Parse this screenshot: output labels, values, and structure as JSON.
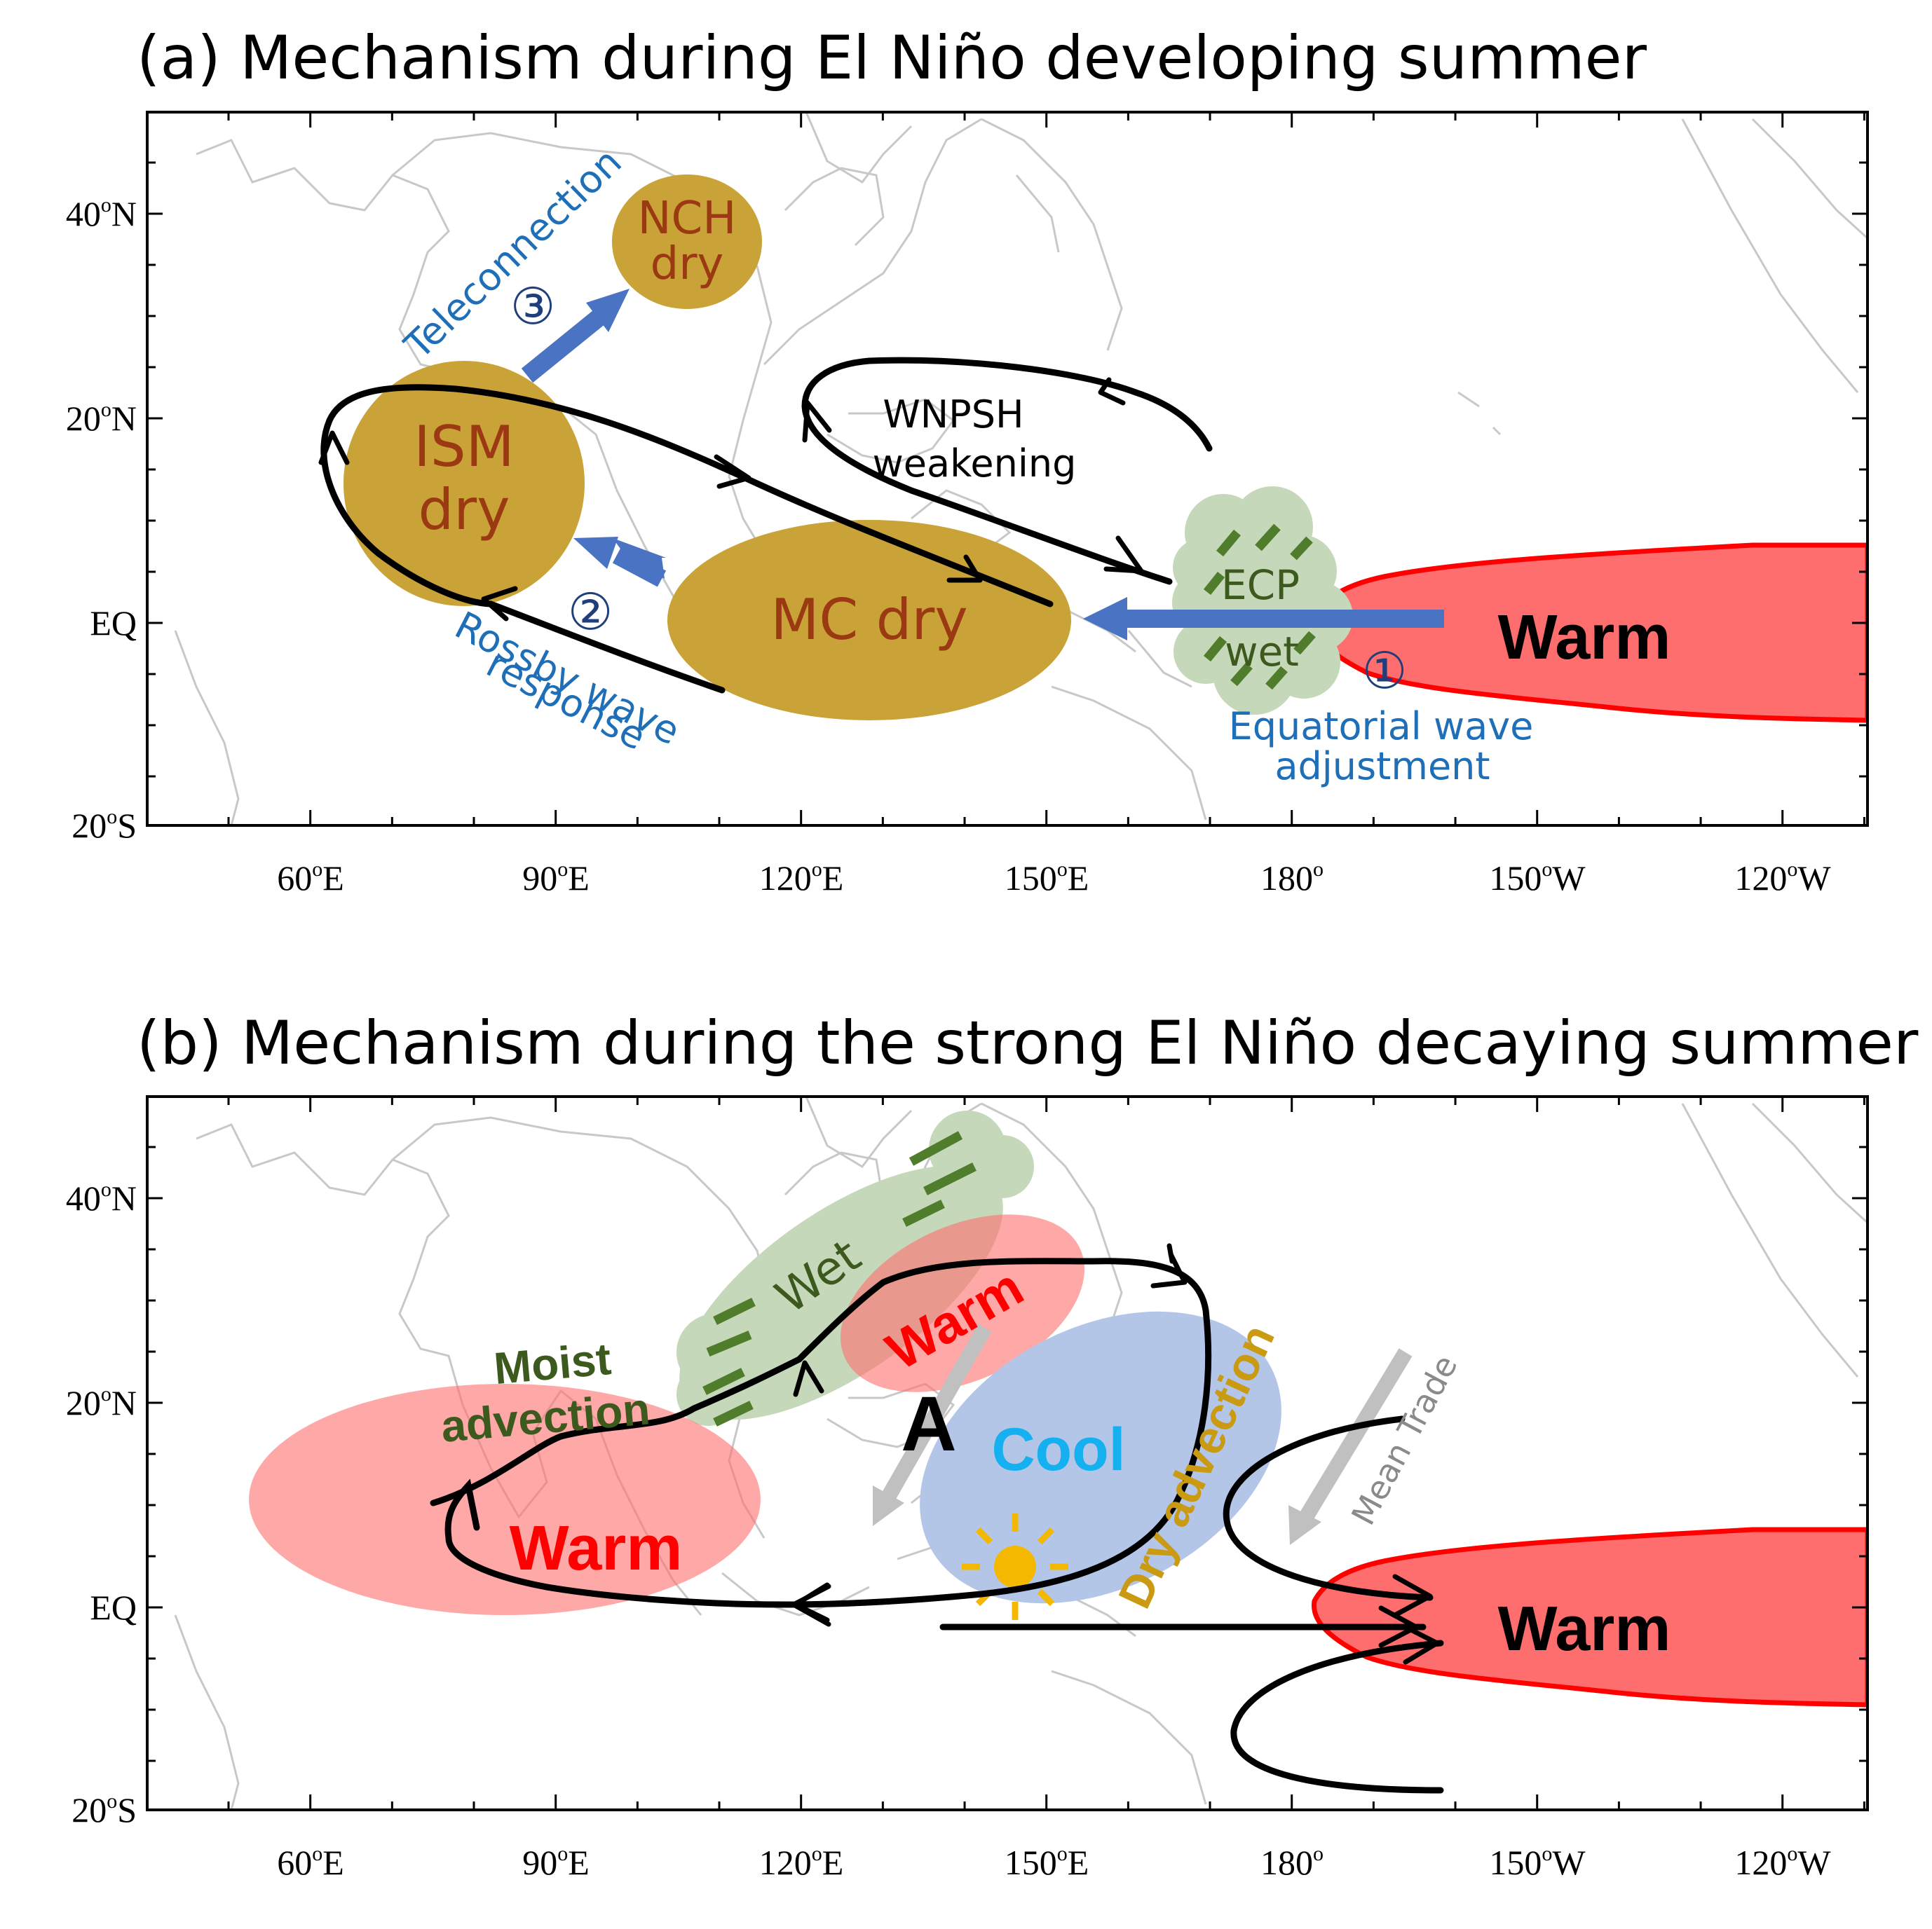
{
  "panel_a": {
    "title": "(a) Mechanism during El Niño developing summer",
    "labels": {
      "nch_1": "NCH",
      "nch_2": "dry",
      "ism_1": "ISM",
      "ism_2": "dry",
      "mc": "MC dry",
      "ecp_1": "ECP",
      "ecp_2": "wet",
      "warm": "Warm",
      "wnpsh_1": "WNPSH",
      "wnpsh_2": "weakening",
      "teleconnection": "Teleconnection",
      "rossby_1": "Rossby wave",
      "rossby_2": "response",
      "equatorial_1": "Equatorial wave",
      "equatorial_2": "adjustment",
      "num1": "①",
      "num2": "②",
      "num3": "③"
    }
  },
  "panel_b": {
    "title": "(b) Mechanism during the strong El Niño decaying summer",
    "labels": {
      "wet": "Wet",
      "warm_ne": "Warm",
      "warm_w": "Warm",
      "warm_e": "Warm",
      "cool": "Cool",
      "anticyclone": "A",
      "moist_1": "Moist",
      "moist_2": "advection",
      "dry": "Dry advection",
      "mean_trade": "Mean Trade"
    }
  },
  "axes": {
    "lat_ticks": [
      {
        "deg": "40",
        "hem": "N"
      },
      {
        "deg": "20",
        "hem": "N"
      },
      {
        "deg": "",
        "hem": "EQ"
      },
      {
        "deg": "20",
        "hem": "S"
      }
    ],
    "lon_ticks": [
      {
        "deg": "60",
        "hem": "E"
      },
      {
        "deg": "90",
        "hem": "E"
      },
      {
        "deg": "120",
        "hem": "E"
      },
      {
        "deg": "150",
        "hem": "E"
      },
      {
        "deg": "180",
        "hem": ""
      },
      {
        "deg": "150",
        "hem": "W"
      },
      {
        "deg": "120",
        "hem": "W"
      }
    ]
  },
  "colors": {
    "dry_fill": "#c9a238",
    "dry_text": "#9b3a12",
    "warm_fill": "#ff6e6e",
    "warm_edge": "#ff0000",
    "wet_fill": "#c6d8ba",
    "wet_dash": "#4f7d2c",
    "blue_arrow": "#4a73c4",
    "blue_text": "#1f6fb8",
    "cool_fill": "#b3c6e8",
    "cool_text": "#14b0f0",
    "moist_text": "#3c5a1e",
    "dry_adv_text": "#c99a12",
    "sun": "#f5b800"
  }
}
